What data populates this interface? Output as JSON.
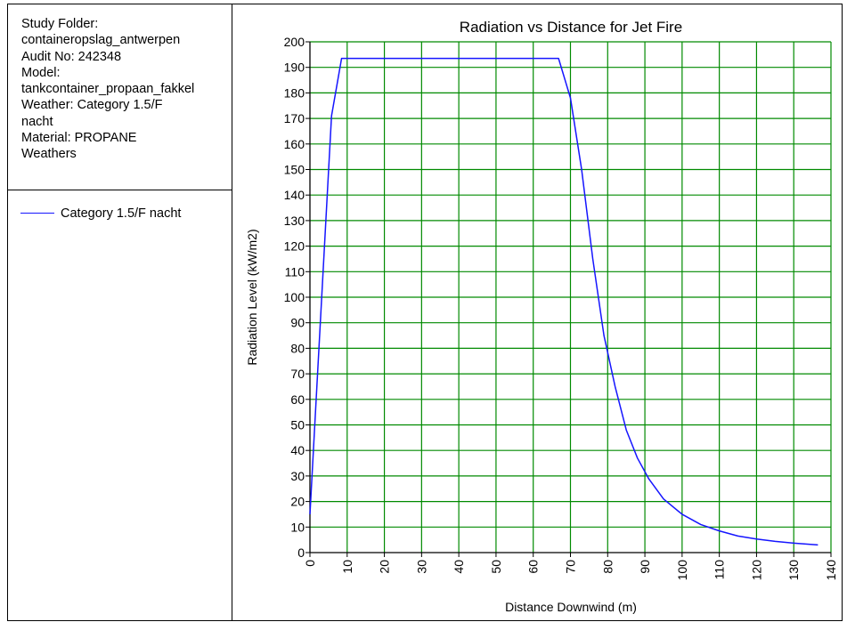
{
  "info": {
    "lines": [
      "Study Folder:",
      "containeropslag_antwerpen",
      "Audit No: 242348",
      "Model:",
      "tankcontainer_propaan_fakkel",
      "Weather: Category 1.5/F",
      "nacht",
      "Material: PROPANE",
      "Weathers"
    ]
  },
  "legend": {
    "label": "Category 1.5/F nacht"
  },
  "colors": {
    "series": "#1515ff",
    "grid": "#008a00",
    "axis": "#000000"
  },
  "chart_data": {
    "type": "line",
    "title": "Radiation vs Distance for Jet Fire",
    "xlabel": "Distance Downwind (m)",
    "ylabel": "Radiation Level (kW/m2)",
    "xlim": [
      0,
      140
    ],
    "ylim": [
      0,
      200
    ],
    "xticks": [
      0,
      10,
      20,
      30,
      40,
      50,
      60,
      70,
      80,
      90,
      100,
      110,
      120,
      130,
      140
    ],
    "yticks": [
      0,
      10,
      20,
      30,
      40,
      50,
      60,
      70,
      80,
      90,
      100,
      110,
      120,
      130,
      140,
      150,
      160,
      170,
      180,
      190,
      200
    ],
    "grid": true,
    "legend_position": "left-panel",
    "series": [
      {
        "name": "Category 1.5/F nacht",
        "x": [
          0,
          5.8,
          8.5,
          66.8,
          70,
          73,
          76,
          79,
          82,
          85,
          88,
          91,
          95,
          100,
          105,
          110,
          115,
          120,
          125,
          130,
          136.5
        ],
        "y": [
          15,
          171,
          193.5,
          193.5,
          178,
          150,
          115,
          85,
          65,
          48,
          37,
          29,
          21,
          15,
          11,
          8.5,
          6.5,
          5.3,
          4.4,
          3.7,
          3
        ]
      }
    ]
  }
}
